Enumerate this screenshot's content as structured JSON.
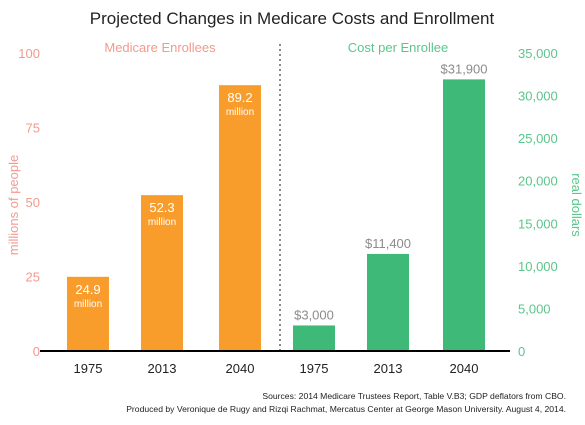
{
  "title": "Projected Changes in Medicare Costs and Enrollment",
  "colors": {
    "enrollees": "#F89C2C",
    "cost": "#3EB977",
    "enrollees_axis_text": "#F29A8E",
    "cost_axis_text": "#5CC58B",
    "divider": "#8A8A8A",
    "cost_value_text": "#8C8C8C",
    "text": "#222222"
  },
  "chart_data": [
    {
      "type": "bar",
      "title": "Medicare Enrollees",
      "ylabel": "millions of people",
      "ylim": [
        0,
        100
      ],
      "yticks": [
        "0",
        "25",
        "50",
        "75",
        "100"
      ],
      "categories": [
        "1975",
        "2013",
        "2040"
      ],
      "values": [
        24.9,
        52.3,
        89.2
      ],
      "value_labels": [
        "24.9",
        "52.3",
        "89.2"
      ],
      "unit_label": "million"
    },
    {
      "type": "bar",
      "title": "Cost per Enrollee",
      "ylabel": "real dollars",
      "ylim": [
        0,
        35000
      ],
      "yticks": [
        "0",
        "5,000",
        "10,000",
        "15,000",
        "20,000",
        "25,000",
        "30,000",
        "35,000"
      ],
      "categories": [
        "1975",
        "2013",
        "2040"
      ],
      "values": [
        3000,
        11400,
        31900
      ],
      "value_labels": [
        "$3,000",
        "$11,400",
        "$31,900"
      ]
    }
  ],
  "sources": [
    "Sources: 2014 Medicare Trustees Report, Table V.B3; GDP deflators from CBO.",
    "Produced by Veronique de Rugy and Rizqi Rachmat, Mercatus Center at George Mason University. August 4, 2014."
  ]
}
